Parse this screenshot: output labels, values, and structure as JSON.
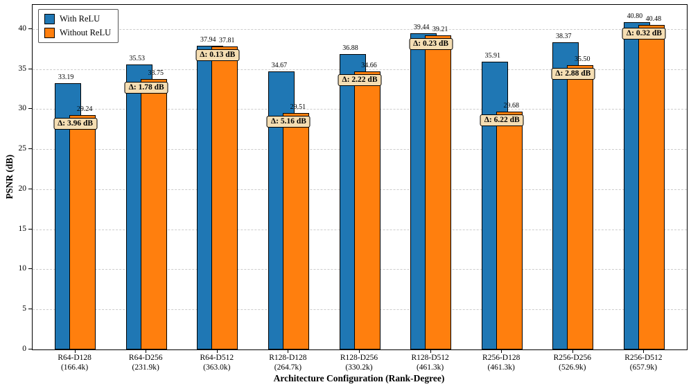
{
  "chart_data": {
    "type": "bar",
    "title": "",
    "xlabel": "Architecture Configuration (Rank-Degree)",
    "ylabel": "PSNR (dB)",
    "ylim": [
      0,
      43
    ],
    "yticks": [
      0,
      5,
      10,
      15,
      20,
      25,
      30,
      35,
      40
    ],
    "grid": "horizontal-dashed",
    "legend_position": "upper-left",
    "categories": [
      "R64-D128",
      "R64-D256",
      "R64-D512",
      "R128-D128",
      "R128-D256",
      "R128-D512",
      "R256-D128",
      "R256-D256",
      "R256-D512"
    ],
    "category_sublabels": [
      "(166.4k)",
      "(231.9k)",
      "(363.0k)",
      "(264.7k)",
      "(330.2k)",
      "(461.3k)",
      "(461.3k)",
      "(526.9k)",
      "(657.9k)"
    ],
    "series": [
      {
        "name": "With ReLU",
        "color": "#1f77b4",
        "values": [
          "33.19",
          "35.53",
          "37.94",
          "34.67",
          "36.88",
          "39.44",
          "35.91",
          "38.37",
          "40.80"
        ]
      },
      {
        "name": "Without ReLU",
        "color": "#ff7f0e",
        "values": [
          "29.24",
          "33.75",
          "37.81",
          "29.51",
          "34.66",
          "39.21",
          "29.68",
          "35.50",
          "40.48"
        ]
      }
    ],
    "delta_labels": [
      "Δ: 3.96 dB",
      "Δ: 1.78 dB",
      "Δ: 0.13 dB",
      "Δ: 5.16 dB",
      "Δ: 2.22 dB",
      "Δ: 0.23 dB",
      "Δ: 6.22 dB",
      "Δ: 2.88 dB",
      "Δ: 0.32 dB"
    ],
    "annotation_style": {
      "bg": "#f5deb3",
      "border": "#000000"
    }
  }
}
